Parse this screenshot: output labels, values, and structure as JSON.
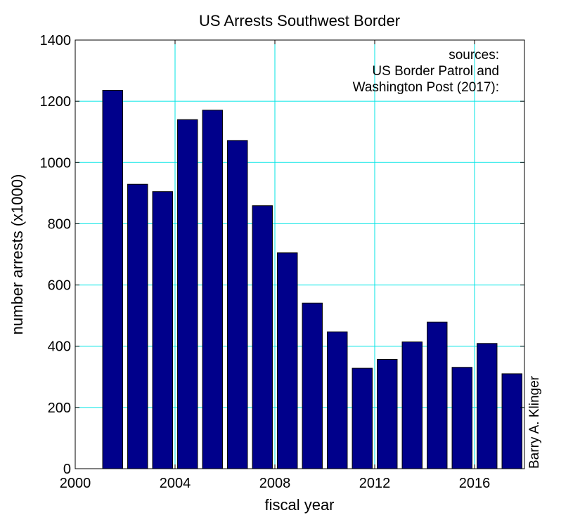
{
  "chart_data": {
    "type": "bar",
    "title": "US Arrests Southwest Border",
    "xlabel": "fiscal year",
    "ylabel": "number arrests (x1000)",
    "x": [
      2001,
      2002,
      2003,
      2004,
      2005,
      2006,
      2007,
      2008,
      2009,
      2010,
      2011,
      2012,
      2013,
      2014,
      2015,
      2016,
      2017
    ],
    "values": [
      1236,
      929,
      905,
      1140,
      1171,
      1072,
      859,
      705,
      541,
      447,
      328,
      357,
      414,
      479,
      331,
      409,
      310
    ],
    "xlim": [
      2000,
      2018
    ],
    "ylim": [
      0,
      1400
    ],
    "xticks": [
      2000,
      2004,
      2008,
      2012,
      2016
    ],
    "yticks": [
      0,
      200,
      400,
      600,
      800,
      1000,
      1200,
      1400
    ],
    "grid": true,
    "bar_color": "#00008b",
    "grid_color": "#00e5e5",
    "annotation": {
      "lines": [
        "sources:",
        "US Border Patrol and",
        "Washington Post (2017):"
      ],
      "placement": "top-right"
    },
    "credit": "Barry A. Klinger"
  }
}
